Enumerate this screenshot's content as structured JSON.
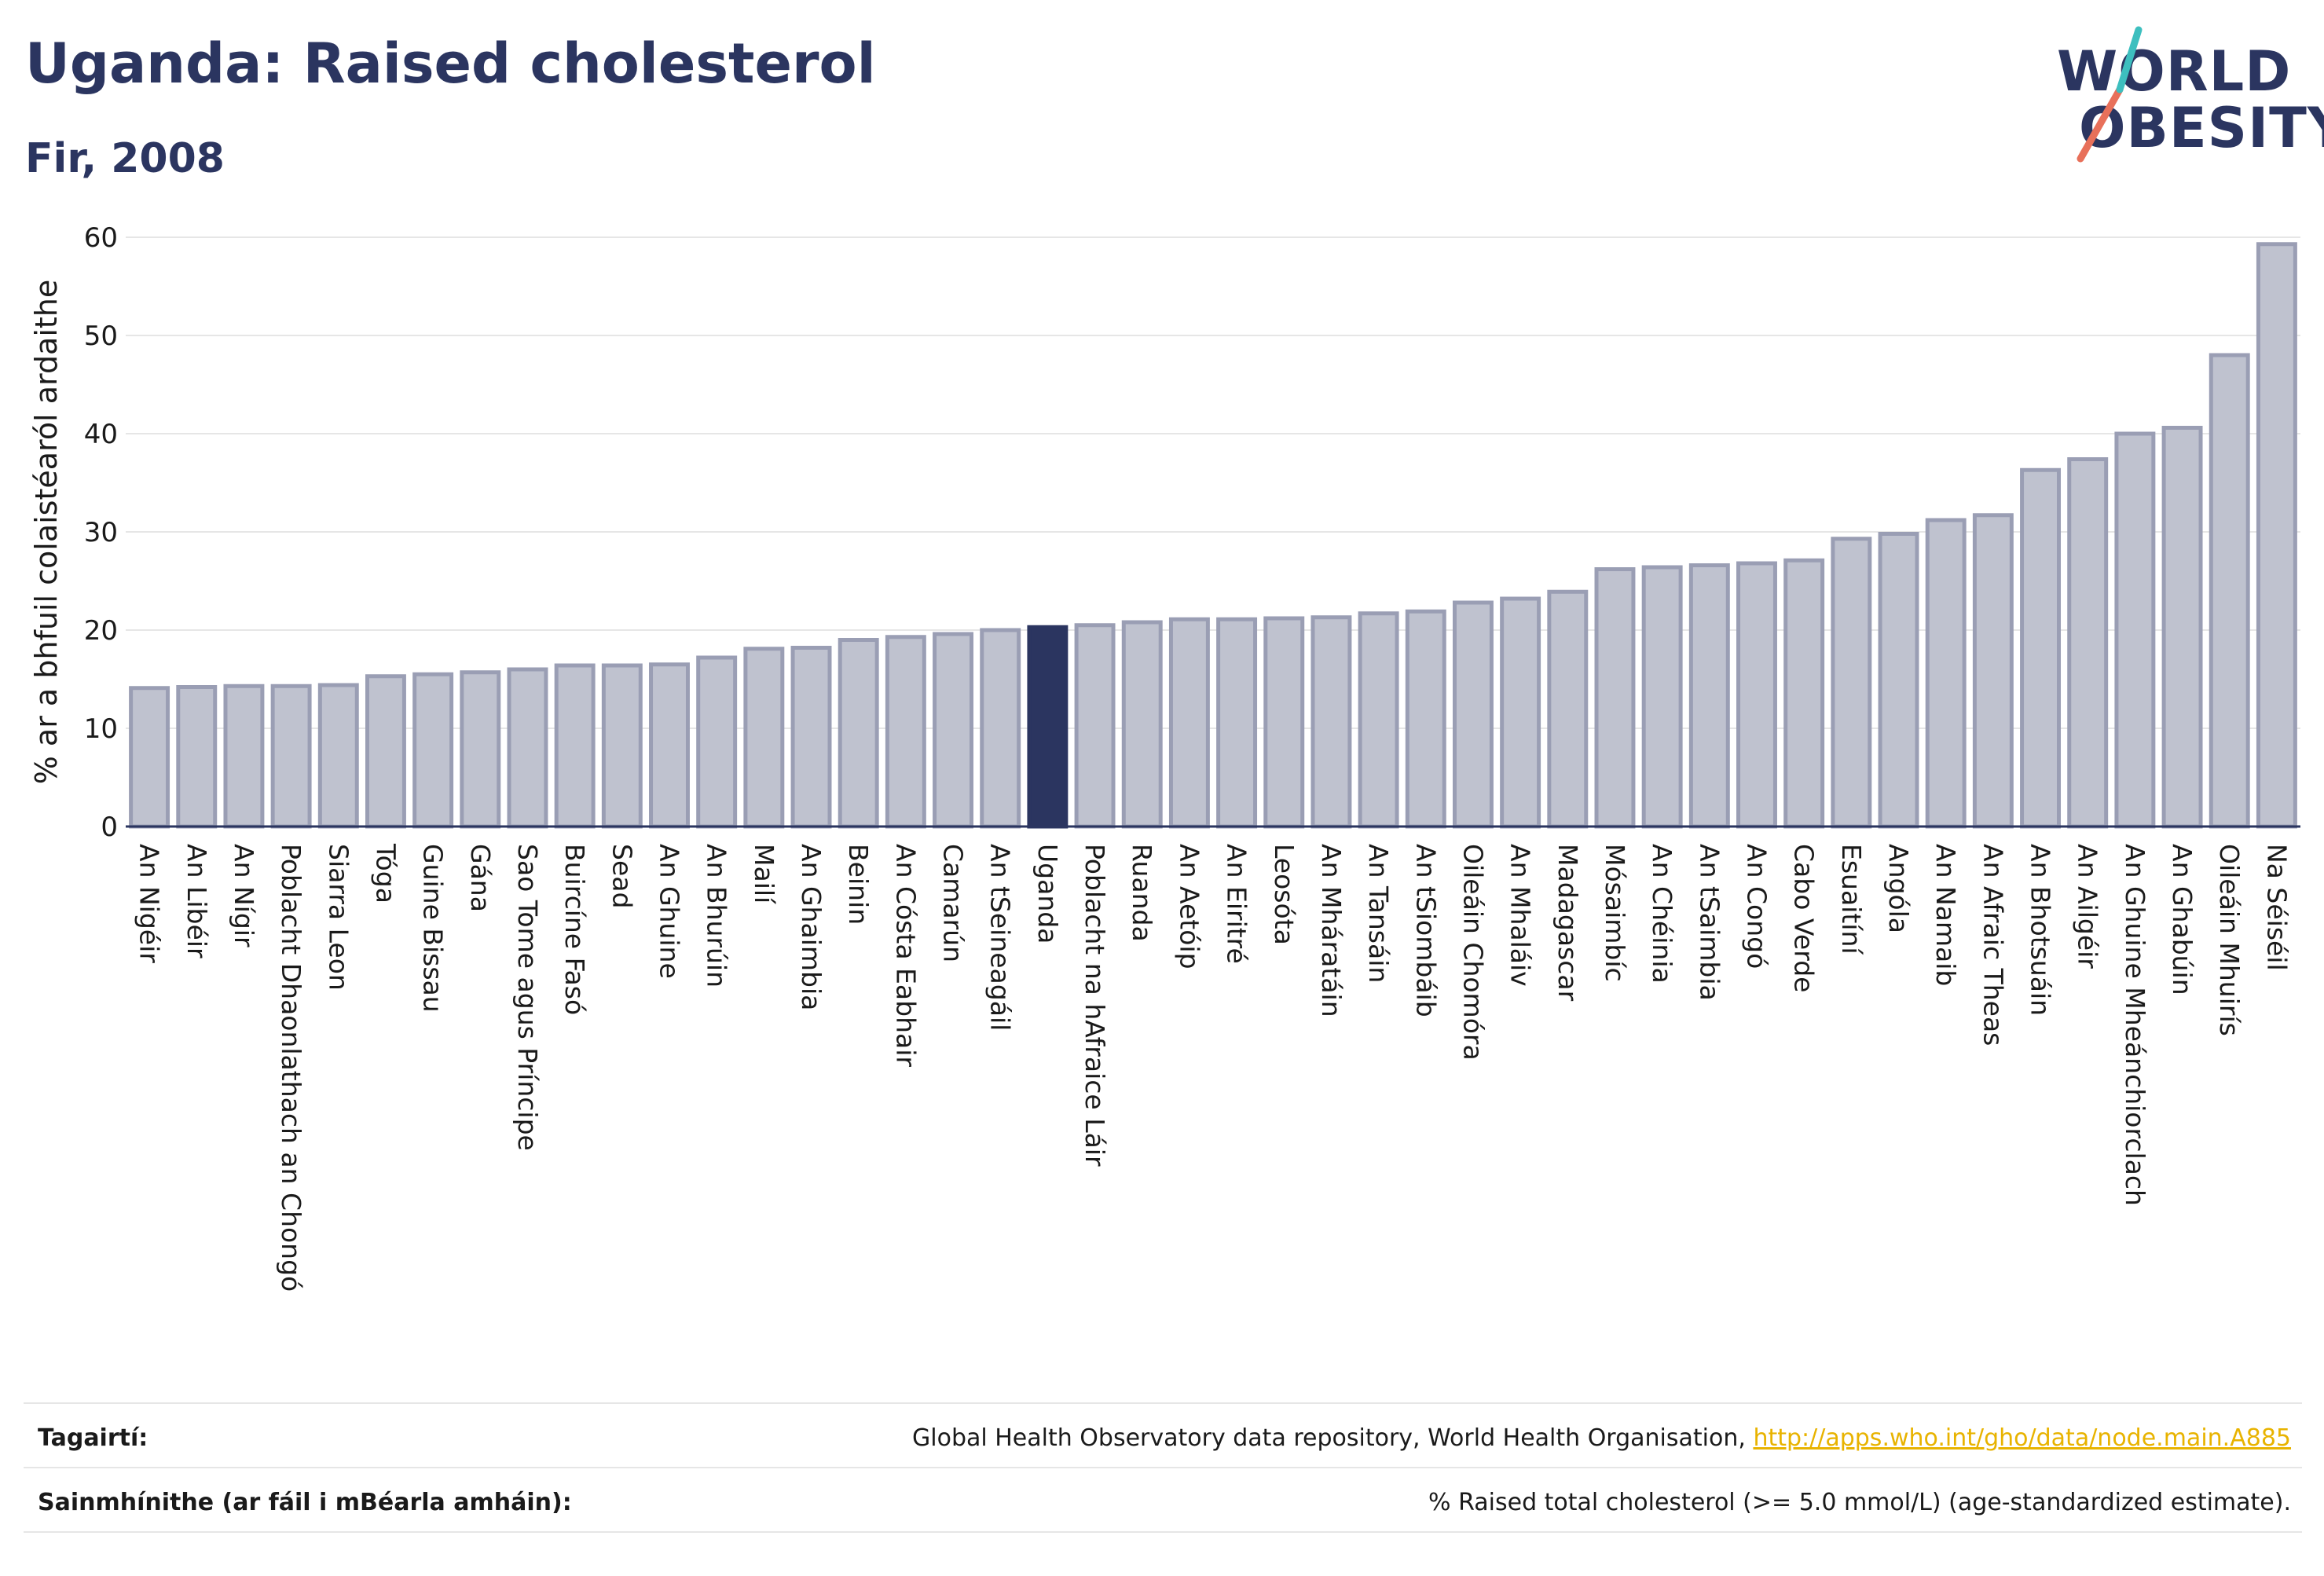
{
  "header": {
    "title": "Uganda: Raised cholesterol",
    "subtitle": "Fir, 2008"
  },
  "logo": {
    "line1": "WORLD",
    "line2": "OBESITY",
    "accent_colors": [
      "#e8705a",
      "#3dbfbf"
    ]
  },
  "footer": {
    "references_label": "Tagairtí:",
    "references_text": "Global Health Observatory data repository, World Health Organisation, ",
    "references_link": "http://apps.who.int/gho/data/node.main.A885",
    "definitions_label": "Sainmhínithe (ar fáil i mBéarla amháin):",
    "definitions_text": "% Raised total cholesterol (>= 5.0 mmol/L) (age-standardized estimate)."
  },
  "colors": {
    "bar": "#bfc2cf",
    "bar_border": "#9a9eb4",
    "highlight": "#2b3560",
    "axis": "#2b3560",
    "grid": "#e6e6e6"
  },
  "chart_data": {
    "type": "bar",
    "title": "Uganda: Raised cholesterol",
    "subtitle": "Fir, 2008",
    "xlabel": "",
    "ylabel": "% ar a bhfuil colaistéaról ardaithe",
    "ylim": [
      0,
      60
    ],
    "yticks": [
      0,
      10,
      20,
      30,
      40,
      50,
      60
    ],
    "grid": true,
    "highlight": "Uganda",
    "categories": [
      "An Nigéir",
      "An Libéir",
      "An Nígir",
      "Poblacht Dhaonlathach an Chongó",
      "Siarra Leon",
      "Tóga",
      "Guine Bissau",
      "Gána",
      "Sao Tome agus Príncipe",
      "Buircíne Fasó",
      "Sead",
      "An Ghuine",
      "An Bhurúin",
      "Mailí",
      "An Ghaimbia",
      "Beinin",
      "An Cósta Eabhair",
      "Camarún",
      "An tSeineagáil",
      "Uganda",
      "Poblacht na hAfraice Láir",
      "Ruanda",
      "An Aetóip",
      "An Eiritré",
      "Leosóta",
      "An Mháratáin",
      "An Tansáin",
      "An tSiombáib",
      "Oileáin Chomóra",
      "An Mhaláiv",
      "Madagascar",
      "Mósaimbíc",
      "An Chéinia",
      "An tSaimbia",
      "An Congó",
      "Cabo Verde",
      "Esuaitíní",
      "Angóla",
      "An Namaib",
      "An Afraic Theas",
      "An Bhotsuáin",
      "An Ailgéir",
      "An Ghuine Mheánchiorclach",
      "An Ghabúin",
      "Oileáin Mhuirís",
      "Na Séiséil"
    ],
    "values": [
      14.1,
      14.2,
      14.3,
      14.3,
      14.4,
      15.3,
      15.5,
      15.7,
      16.0,
      16.4,
      16.4,
      16.5,
      17.2,
      18.1,
      18.2,
      19.0,
      19.3,
      19.6,
      20.0,
      20.3,
      20.5,
      20.8,
      21.1,
      21.1,
      21.2,
      21.3,
      21.7,
      21.9,
      22.8,
      23.2,
      23.9,
      26.2,
      26.4,
      26.6,
      26.8,
      27.1,
      29.3,
      29.8,
      31.2,
      31.7,
      36.3,
      37.4,
      40.0,
      40.6,
      48.0,
      59.3
    ]
  }
}
